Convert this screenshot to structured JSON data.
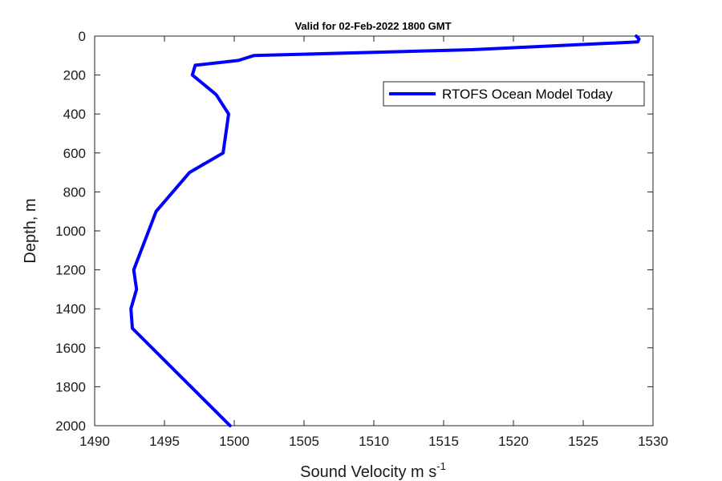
{
  "chart_data": {
    "type": "line",
    "title": "Valid for 02-Feb-2022 1800 GMT",
    "xlabel": "Sound Velocity m s",
    "xlabel_superscript": "-1",
    "ylabel": "Depth, m",
    "xlim": [
      1490,
      1530
    ],
    "ylim": [
      0,
      2000
    ],
    "y_reversed": true,
    "xticks": [
      1490,
      1495,
      1500,
      1505,
      1510,
      1515,
      1520,
      1525,
      1530
    ],
    "yticks": [
      0,
      200,
      400,
      600,
      800,
      1000,
      1200,
      1400,
      1600,
      1800,
      2000
    ],
    "grid": false,
    "legend_position": "top-right",
    "line_color": "#0000ff",
    "series": [
      {
        "name": "RTOFS Ocean Model Today",
        "points": [
          {
            "x": 1528.8,
            "y": 0
          },
          {
            "x": 1529.0,
            "y": 15
          },
          {
            "x": 1528.9,
            "y": 30
          },
          {
            "x": 1517.0,
            "y": 70
          },
          {
            "x": 1501.4,
            "y": 100
          },
          {
            "x": 1500.3,
            "y": 125
          },
          {
            "x": 1497.2,
            "y": 150
          },
          {
            "x": 1497.0,
            "y": 200
          },
          {
            "x": 1498.7,
            "y": 300
          },
          {
            "x": 1499.6,
            "y": 400
          },
          {
            "x": 1499.2,
            "y": 600
          },
          {
            "x": 1496.8,
            "y": 700
          },
          {
            "x": 1494.4,
            "y": 900
          },
          {
            "x": 1492.8,
            "y": 1200
          },
          {
            "x": 1493.0,
            "y": 1300
          },
          {
            "x": 1492.6,
            "y": 1400
          },
          {
            "x": 1492.7,
            "y": 1500
          },
          {
            "x": 1494.8,
            "y": 1650
          },
          {
            "x": 1496.9,
            "y": 1800
          },
          {
            "x": 1499.7,
            "y": 2000
          }
        ]
      }
    ]
  }
}
